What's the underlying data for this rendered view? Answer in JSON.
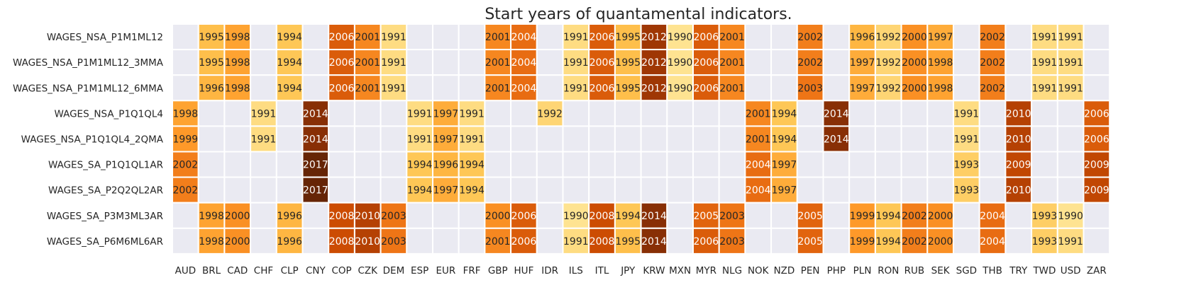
{
  "chart_data": {
    "type": "heatmap",
    "title": "Start years of quantamental indicators.",
    "xlabel": "",
    "ylabel": "",
    "x_categories": [
      "AUD",
      "BRL",
      "CAD",
      "CHF",
      "CLP",
      "CNY",
      "COP",
      "CZK",
      "DEM",
      "ESP",
      "EUR",
      "FRF",
      "GBP",
      "HUF",
      "IDR",
      "ILS",
      "ITL",
      "JPY",
      "KRW",
      "MXN",
      "MYR",
      "NLG",
      "NOK",
      "NZD",
      "PEN",
      "PHP",
      "PLN",
      "RON",
      "RUB",
      "SEK",
      "SGD",
      "THB",
      "TRY",
      "TWD",
      "USD",
      "ZAR"
    ],
    "y_categories": [
      "WAGES_NSA_P1M1ML12",
      "WAGES_NSA_P1M1ML12_3MMA",
      "WAGES_NSA_P1M1ML12_6MMA",
      "WAGES_NSA_P1Q1QL4",
      "WAGES_NSA_P1Q1QL4_2QMA",
      "WAGES_SA_P1Q1QL1AR",
      "WAGES_SA_P2Q2QL2AR",
      "WAGES_SA_P3M3ML3AR",
      "WAGES_SA_P6M6ML6AR"
    ],
    "values": [
      [
        null,
        1995,
        1998,
        null,
        1994,
        null,
        2006,
        2001,
        1991,
        null,
        null,
        null,
        2001,
        2004,
        null,
        1991,
        2006,
        1995,
        2012,
        1990,
        2006,
        2001,
        null,
        null,
        2002,
        null,
        1996,
        1992,
        2000,
        1997,
        null,
        2002,
        null,
        1991,
        1991,
        null
      ],
      [
        null,
        1995,
        1998,
        null,
        1994,
        null,
        2006,
        2001,
        1991,
        null,
        null,
        null,
        2001,
        2004,
        null,
        1991,
        2006,
        1995,
        2012,
        1990,
        2006,
        2001,
        null,
        null,
        2002,
        null,
        1997,
        1992,
        2000,
        1998,
        null,
        2002,
        null,
        1991,
        1991,
        null
      ],
      [
        null,
        1996,
        1998,
        null,
        1994,
        null,
        2006,
        2001,
        1991,
        null,
        null,
        null,
        2001,
        2004,
        null,
        1991,
        2006,
        1995,
        2012,
        1990,
        2006,
        2001,
        null,
        null,
        2003,
        null,
        1997,
        1992,
        2000,
        1998,
        null,
        2002,
        null,
        1991,
        1991,
        null
      ],
      [
        1998,
        null,
        null,
        1991,
        null,
        2014,
        null,
        null,
        null,
        1991,
        1997,
        1991,
        null,
        null,
        1992,
        null,
        null,
        null,
        null,
        null,
        null,
        null,
        2001,
        1994,
        null,
        2014,
        null,
        null,
        null,
        null,
        1991,
        null,
        2010,
        null,
        null,
        2006
      ],
      [
        1999,
        null,
        null,
        1991,
        null,
        2014,
        null,
        null,
        null,
        1991,
        1997,
        1991,
        null,
        null,
        null,
        null,
        null,
        null,
        null,
        null,
        null,
        null,
        2001,
        1994,
        null,
        2014,
        null,
        null,
        null,
        null,
        1991,
        null,
        2010,
        null,
        null,
        2006
      ],
      [
        2002,
        null,
        null,
        null,
        null,
        2017,
        null,
        null,
        null,
        1994,
        1996,
        1994,
        null,
        null,
        null,
        null,
        null,
        null,
        null,
        null,
        null,
        null,
        2004,
        1997,
        null,
        null,
        null,
        null,
        null,
        null,
        1993,
        null,
        2009,
        null,
        null,
        2009
      ],
      [
        2002,
        null,
        null,
        null,
        null,
        2017,
        null,
        null,
        null,
        1994,
        1997,
        1994,
        null,
        null,
        null,
        null,
        null,
        null,
        null,
        null,
        null,
        null,
        2004,
        1997,
        null,
        null,
        null,
        null,
        null,
        null,
        1993,
        null,
        2010,
        null,
        null,
        2009
      ],
      [
        null,
        1998,
        2000,
        null,
        1996,
        null,
        2008,
        2010,
        2003,
        null,
        null,
        null,
        2000,
        2006,
        null,
        1990,
        2008,
        1994,
        2014,
        null,
        2005,
        2003,
        null,
        null,
        2005,
        null,
        1999,
        1994,
        2002,
        2000,
        null,
        2004,
        null,
        1993,
        1990,
        null
      ],
      [
        null,
        1998,
        2000,
        null,
        1996,
        null,
        2008,
        2010,
        2003,
        null,
        null,
        null,
        2001,
        2006,
        null,
        1991,
        2008,
        1995,
        2014,
        null,
        2006,
        2003,
        null,
        null,
        2005,
        null,
        1999,
        1994,
        2002,
        2000,
        null,
        2004,
        null,
        1993,
        1991,
        null
      ]
    ],
    "color_scale": {
      "name": "YlOrBr",
      "range": [
        1990,
        2017
      ],
      "stops": [
        "#fee391",
        "#fec44f",
        "#fe9929",
        "#ec7014",
        "#cc4c02",
        "#993404",
        "#662506"
      ],
      "missing": "#eaeaf2"
    },
    "legend": "none",
    "grid": false
  }
}
